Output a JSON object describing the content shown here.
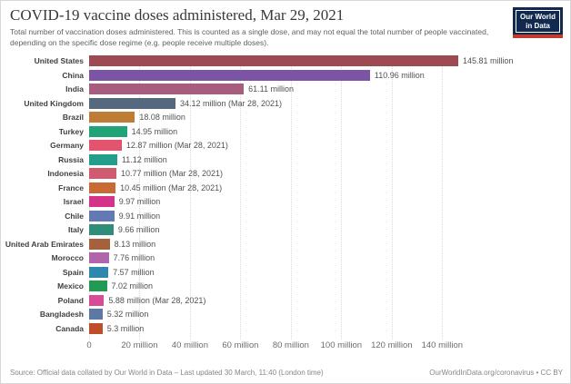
{
  "header": {
    "title": "COVID-19 vaccine doses administered, Mar 29, 2021",
    "subtitle": "Total number of vaccination doses administered. This is counted as a single dose, and may not equal the total number of people vaccinated, depending on the specific dose regime (e.g. people receive multiple doses).",
    "logo": {
      "line1": "Our World",
      "line2": "in Data",
      "background": "#12294F",
      "stripe": "#C03A2D"
    }
  },
  "chart_data": {
    "type": "bar",
    "orientation": "horizontal",
    "title": "COVID-19 vaccine doses administered, Mar 29, 2021",
    "unit": "doses (million)",
    "axis_max": 190,
    "grid": "dotted-vertical",
    "x_ticks": [
      {
        "value": 0,
        "label": "0"
      },
      {
        "value": 20,
        "label": "20 million"
      },
      {
        "value": 40,
        "label": "40 million"
      },
      {
        "value": 60,
        "label": "60 million"
      },
      {
        "value": 80,
        "label": "80 million"
      },
      {
        "value": 100,
        "label": "100 million"
      },
      {
        "value": 120,
        "label": "120 million"
      },
      {
        "value": 140,
        "label": "140 million"
      }
    ],
    "bars": [
      {
        "country": "United States",
        "value": 145.81,
        "label": "145.81 million",
        "color": "#9D4A52"
      },
      {
        "country": "China",
        "value": 110.96,
        "label": "110.96 million",
        "color": "#7C54A5"
      },
      {
        "country": "India",
        "value": 61.11,
        "label": "61.11 million",
        "color": "#A75D7E"
      },
      {
        "country": "United Kingdom",
        "value": 34.12,
        "label": "34.12 million (Mar 28, 2021)",
        "color": "#56687E"
      },
      {
        "country": "Brazil",
        "value": 18.08,
        "label": "18.08 million",
        "color": "#BE7C35"
      },
      {
        "country": "Turkey",
        "value": 14.95,
        "label": "14.95 million",
        "color": "#20A377"
      },
      {
        "country": "Germany",
        "value": 12.87,
        "label": "12.87 million (Mar 28, 2021)",
        "color": "#E2536D"
      },
      {
        "country": "Russia",
        "value": 11.12,
        "label": "11.12 million",
        "color": "#229E8A"
      },
      {
        "country": "Indonesia",
        "value": 10.77,
        "label": "10.77 million (Mar 28, 2021)",
        "color": "#D05B6F"
      },
      {
        "country": "France",
        "value": 10.45,
        "label": "10.45 million (Mar 28, 2021)",
        "color": "#C96A35"
      },
      {
        "country": "Israel",
        "value": 9.97,
        "label": "9.97 million",
        "color": "#D53389"
      },
      {
        "country": "Chile",
        "value": 9.91,
        "label": "9.91 million",
        "color": "#6279B5"
      },
      {
        "country": "Italy",
        "value": 9.66,
        "label": "9.66 million",
        "color": "#2F8E79"
      },
      {
        "country": "United Arab Emirates",
        "value": 8.13,
        "label": "8.13 million",
        "color": "#A6603C"
      },
      {
        "country": "Morocco",
        "value": 7.76,
        "label": "7.76 million",
        "color": "#B166AC"
      },
      {
        "country": "Spain",
        "value": 7.57,
        "label": "7.57 million",
        "color": "#2F87B0"
      },
      {
        "country": "Mexico",
        "value": 7.02,
        "label": "7.02 million",
        "color": "#219A53"
      },
      {
        "country": "Poland",
        "value": 5.88,
        "label": "5.88 million (Mar 28, 2021)",
        "color": "#D84B96"
      },
      {
        "country": "Bangladesh",
        "value": 5.32,
        "label": "5.32 million",
        "color": "#5B79A3"
      },
      {
        "country": "Canada",
        "value": 5.3,
        "label": "5.3 million",
        "color": "#BF4E28"
      }
    ]
  },
  "footer": {
    "source": "Source: Official data collated by Our World in Data – Last updated 30 March, 11:40 (London time)",
    "attribution": "OurWorldInData.org/coronavirus • CC BY"
  }
}
